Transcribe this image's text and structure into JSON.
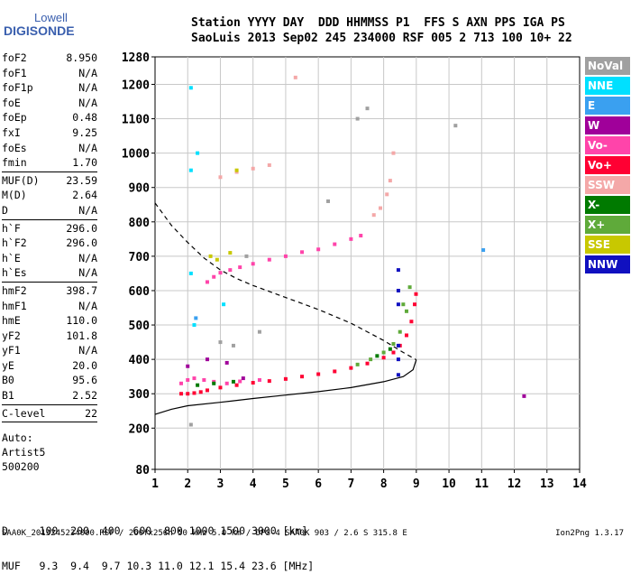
{
  "logo": {
    "line1": "Lowell",
    "line2": "DIGISONDE"
  },
  "header": {
    "row1": "Station YYYY DAY  DDD HHMMSS P1  FFS S AXN PPS IGA PS",
    "row2": "SaoLuis 2013 Sep02 245 234000 RSF 005 2 713 100 10+ 22"
  },
  "params": [
    {
      "name": "foF2",
      "value": "8.950"
    },
    {
      "name": "foF1",
      "value": "N/A"
    },
    {
      "name": "foF1p",
      "value": "N/A"
    },
    {
      "name": "foE",
      "value": "N/A"
    },
    {
      "name": "foEp",
      "value": "0.48"
    },
    {
      "name": "fxI",
      "value": "9.25"
    },
    {
      "name": "foEs",
      "value": "N/A"
    },
    {
      "name": "fmin",
      "value": "1.70",
      "sep_after": true
    },
    {
      "name": "MUF(D)",
      "value": "23.59"
    },
    {
      "name": "M(D)",
      "value": "2.64"
    },
    {
      "name": "D",
      "value": "N/A",
      "sep_after": true
    },
    {
      "name": "h`F",
      "value": "296.0"
    },
    {
      "name": "h`F2",
      "value": "296.0"
    },
    {
      "name": "h`E",
      "value": "N/A"
    },
    {
      "name": "h`Es",
      "value": "N/A",
      "sep_after": true
    },
    {
      "name": "hmF2",
      "value": "398.7"
    },
    {
      "name": "hmF1",
      "value": "N/A"
    },
    {
      "name": "hmE",
      "value": "110.0"
    },
    {
      "name": "yF2",
      "value": "101.8"
    },
    {
      "name": "yF1",
      "value": "N/A"
    },
    {
      "name": "yE",
      "value": "20.0"
    },
    {
      "name": "B0",
      "value": "95.6"
    },
    {
      "name": "B1",
      "value": "2.52",
      "sep_after": true
    },
    {
      "name": "C-level",
      "value": "22",
      "sep_after": true
    }
  ],
  "auto": {
    "line1": "Auto:",
    "line2": "Artist5",
    "line3": "500200"
  },
  "legend": [
    {
      "label": "NoVal",
      "color": "#a0a0a0"
    },
    {
      "label": "NNE",
      "color": "#00e0ff"
    },
    {
      "label": "E",
      "color": "#3aa0f0"
    },
    {
      "label": "W",
      "color": "#a0009a"
    },
    {
      "label": "Vo-",
      "color": "#ff44aa"
    },
    {
      "label": "Vo+",
      "color": "#ff0033"
    },
    {
      "label": "SSW",
      "color": "#f4a8a8"
    },
    {
      "label": "X-",
      "color": "#007a00"
    },
    {
      "label": "X+",
      "color": "#5faa3a"
    },
    {
      "label": "SSE",
      "color": "#c8c800"
    },
    {
      "label": "NNW",
      "color": "#1010c0"
    }
  ],
  "bottom": {
    "d_row": "D     100  200  400  600  800 1000 1500 3000 [km]",
    "muf_row": "MUF   9.3  9.4  9.7 10.3 11.0 12.1 15.4 23.6 [MHz]"
  },
  "footer": {
    "text": "SAA0K_2013245234000.RSF / 260fx256h 50 kHz 5.0 km / DPS-4 SAA0K 903 / 2.6 S 315.8 E",
    "version": "Ion2Png 1.3.17"
  },
  "chart_data": {
    "type": "scatter",
    "title": "",
    "xlabel": "",
    "ylabel": "",
    "xlim": [
      1,
      14
    ],
    "ylim": [
      80,
      1280
    ],
    "x_ticks": [
      1,
      2,
      3,
      4,
      5,
      6,
      7,
      8,
      9,
      10,
      11,
      12,
      13,
      14
    ],
    "y_ticks": [
      80,
      200,
      300,
      400,
      500,
      600,
      700,
      800,
      900,
      1000,
      1100,
      1200,
      1280
    ],
    "grid": true,
    "series": [
      {
        "name": "Vo+",
        "points": [
          [
            1.8,
            300
          ],
          [
            2.0,
            300
          ],
          [
            2.2,
            302
          ],
          [
            2.4,
            305
          ],
          [
            2.6,
            310
          ],
          [
            3.0,
            318
          ],
          [
            3.5,
            325
          ],
          [
            4.0,
            332
          ],
          [
            4.5,
            337
          ],
          [
            5.0,
            343
          ],
          [
            5.5,
            350
          ],
          [
            6.0,
            357
          ],
          [
            6.5,
            365
          ],
          [
            7.0,
            375
          ],
          [
            7.5,
            388
          ],
          [
            8.0,
            405
          ],
          [
            8.3,
            420
          ],
          [
            8.5,
            440
          ],
          [
            8.7,
            470
          ],
          [
            8.85,
            510
          ],
          [
            8.95,
            560
          ],
          [
            8.99,
            590
          ]
        ]
      },
      {
        "name": "Vo-",
        "points": [
          [
            1.8,
            330
          ],
          [
            2.0,
            340
          ],
          [
            2.2,
            345
          ],
          [
            2.5,
            340
          ],
          [
            2.8,
            335
          ],
          [
            3.2,
            330
          ],
          [
            3.6,
            336
          ],
          [
            4.2,
            340
          ],
          [
            2.6,
            625
          ],
          [
            2.8,
            640
          ],
          [
            3.0,
            652
          ],
          [
            3.3,
            660
          ],
          [
            3.6,
            668
          ],
          [
            4.0,
            678
          ],
          [
            4.5,
            690
          ],
          [
            5.0,
            700
          ],
          [
            5.5,
            712
          ],
          [
            6.0,
            720
          ],
          [
            6.5,
            735
          ],
          [
            7.0,
            750
          ],
          [
            7.3,
            760
          ]
        ]
      },
      {
        "name": "SSW",
        "points": [
          [
            3.0,
            930
          ],
          [
            3.5,
            945
          ],
          [
            4.0,
            955
          ],
          [
            4.5,
            965
          ],
          [
            7.7,
            820
          ],
          [
            7.9,
            840
          ],
          [
            8.1,
            880
          ],
          [
            8.2,
            920
          ],
          [
            8.3,
            1000
          ],
          [
            5.3,
            1220
          ]
        ]
      },
      {
        "name": "X+",
        "points": [
          [
            7.2,
            385
          ],
          [
            7.6,
            400
          ],
          [
            8.0,
            420
          ],
          [
            8.3,
            445
          ],
          [
            8.5,
            480
          ],
          [
            8.7,
            540
          ],
          [
            8.8,
            610
          ],
          [
            8.6,
            560
          ]
        ]
      },
      {
        "name": "X-",
        "points": [
          [
            2.3,
            325
          ],
          [
            2.8,
            330
          ],
          [
            3.4,
            335
          ],
          [
            7.8,
            410
          ],
          [
            8.2,
            430
          ]
        ]
      },
      {
        "name": "NNE",
        "points": [
          [
            2.1,
            1190
          ],
          [
            2.1,
            950
          ],
          [
            2.3,
            1000
          ],
          [
            2.2,
            500
          ],
          [
            2.1,
            650
          ],
          [
            3.1,
            560
          ]
        ]
      },
      {
        "name": "W",
        "points": [
          [
            2.0,
            380
          ],
          [
            2.6,
            400
          ],
          [
            3.2,
            390
          ],
          [
            3.7,
            345
          ],
          [
            12.3,
            293
          ]
        ]
      },
      {
        "name": "NNW",
        "points": [
          [
            8.45,
            660
          ],
          [
            8.45,
            600
          ],
          [
            8.45,
            560
          ],
          [
            8.45,
            440
          ],
          [
            8.45,
            400
          ],
          [
            8.45,
            355
          ]
        ]
      },
      {
        "name": "SSE",
        "points": [
          [
            3.5,
            950
          ],
          [
            2.7,
            700
          ],
          [
            3.3,
            710
          ],
          [
            2.9,
            690
          ]
        ]
      },
      {
        "name": "NoVal",
        "points": [
          [
            3.4,
            440
          ],
          [
            3.0,
            450
          ],
          [
            3.8,
            700
          ],
          [
            4.2,
            480
          ],
          [
            7.2,
            1100
          ],
          [
            7.5,
            1130
          ],
          [
            6.3,
            860
          ],
          [
            10.2,
            1080
          ],
          [
            2.1,
            210
          ]
        ]
      },
      {
        "name": "E",
        "points": [
          [
            11.05,
            718
          ],
          [
            2.25,
            520
          ]
        ]
      }
    ],
    "profile_curve": {
      "name": "E-layer profile",
      "points": [
        [
          1.0,
          240
        ],
        [
          1.5,
          255
        ],
        [
          2.0,
          265
        ],
        [
          3.0,
          275
        ],
        [
          4.0,
          286
        ],
        [
          5.0,
          296
        ],
        [
          6.0,
          306
        ],
        [
          7.0,
          318
        ],
        [
          8.0,
          335
        ],
        [
          8.6,
          350
        ],
        [
          8.9,
          370
        ],
        [
          9.0,
          398.7
        ]
      ]
    },
    "extraordinary_curve": {
      "points": [
        [
          1.0,
          855
        ],
        [
          1.5,
          790
        ],
        [
          2.0,
          740
        ],
        [
          2.5,
          695
        ],
        [
          3.0,
          660
        ],
        [
          3.5,
          635
        ],
        [
          4.0,
          615
        ],
        [
          5.0,
          580
        ],
        [
          6.0,
          545
        ],
        [
          7.0,
          505
        ],
        [
          8.0,
          455
        ],
        [
          8.6,
          420
        ],
        [
          9.0,
          398.7
        ]
      ]
    }
  }
}
